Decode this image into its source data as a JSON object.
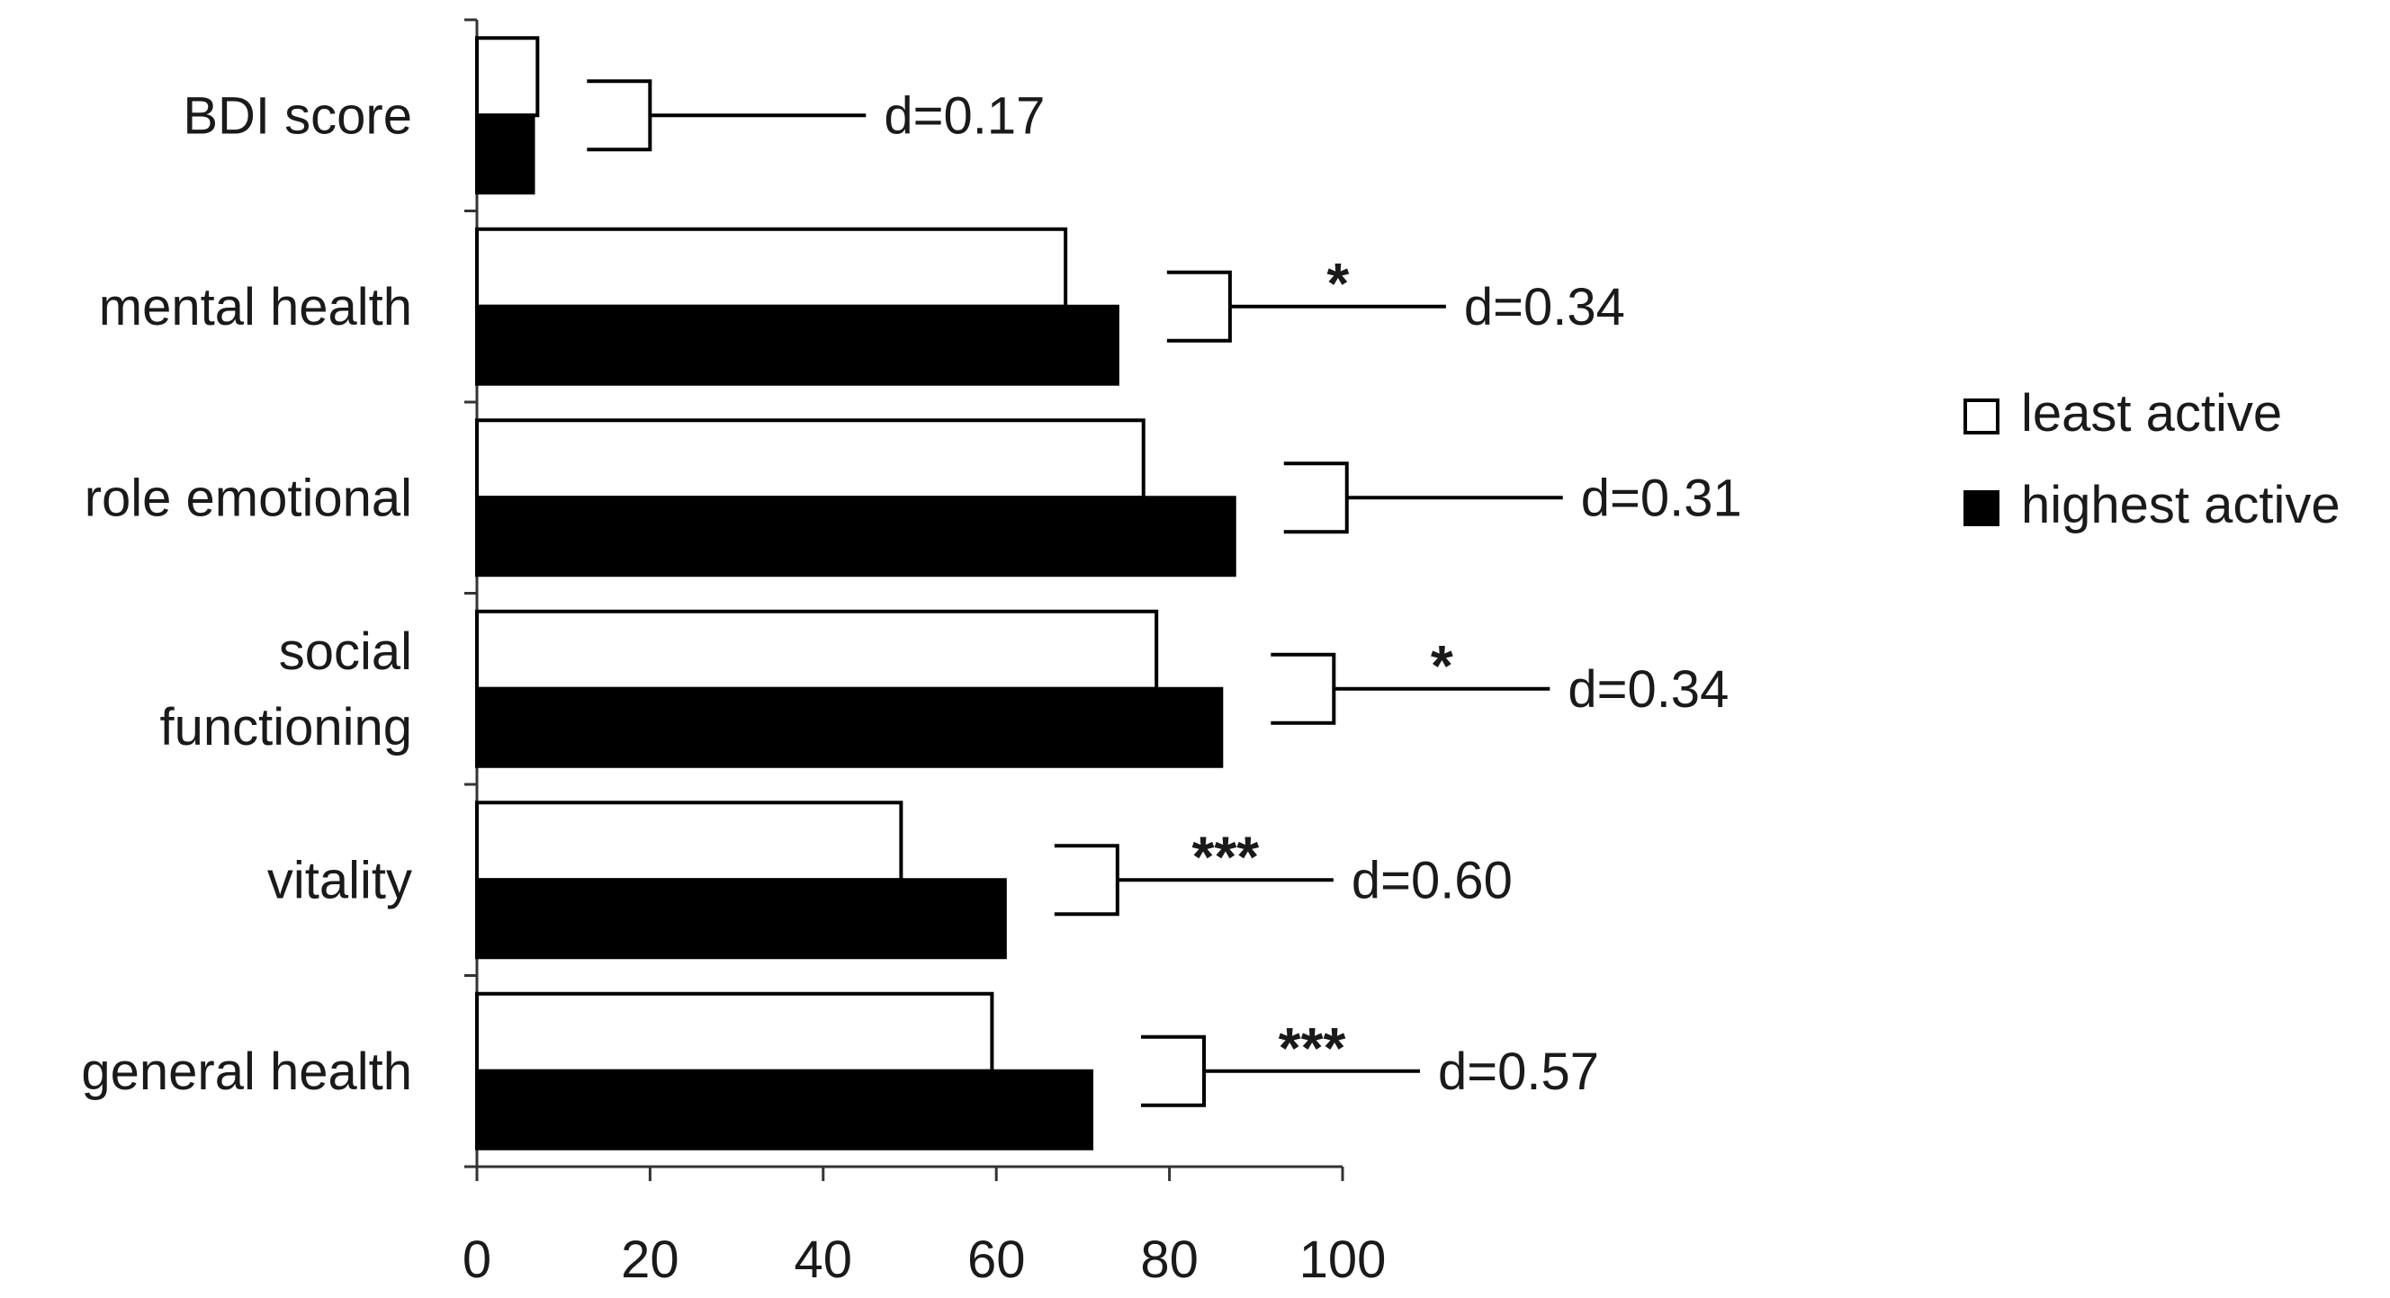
{
  "chart_data": {
    "type": "bar",
    "orientation": "horizontal",
    "categories": [
      "BDI score",
      "mental health",
      "role emotional",
      "social functioning",
      "vitality",
      "general health"
    ],
    "category_lines": [
      [
        "BDI score"
      ],
      [
        "mental health"
      ],
      [
        "role emotional"
      ],
      [
        "social",
        "functioning"
      ],
      [
        "vitality"
      ],
      [
        "general health"
      ]
    ],
    "series": [
      {
        "name": "least active",
        "color": "#ffffff",
        "values": [
          7,
          68,
          77,
          78.5,
          49,
          59.5
        ]
      },
      {
        "name": "highest active",
        "color": "#000000",
        "values": [
          6.5,
          74,
          87.5,
          86,
          61,
          71
        ]
      }
    ],
    "comparisons": [
      {
        "effect_label": "d=0.17",
        "significance": ""
      },
      {
        "effect_label": "d=0.34",
        "significance": "*"
      },
      {
        "effect_label": "d=0.31",
        "significance": ""
      },
      {
        "effect_label": "d=0.34",
        "significance": "*"
      },
      {
        "effect_label": "d=0.60",
        "significance": "***"
      },
      {
        "effect_label": "d=0.57",
        "significance": "***"
      }
    ],
    "xlim": [
      0,
      100
    ],
    "xticks": [
      "0",
      "20",
      "40",
      "60",
      "80",
      "100"
    ],
    "legend": {
      "placement": "right",
      "entries": [
        "least active",
        "highest active"
      ]
    },
    "grid": false,
    "title": "",
    "xlabel": "",
    "ylabel": ""
  }
}
